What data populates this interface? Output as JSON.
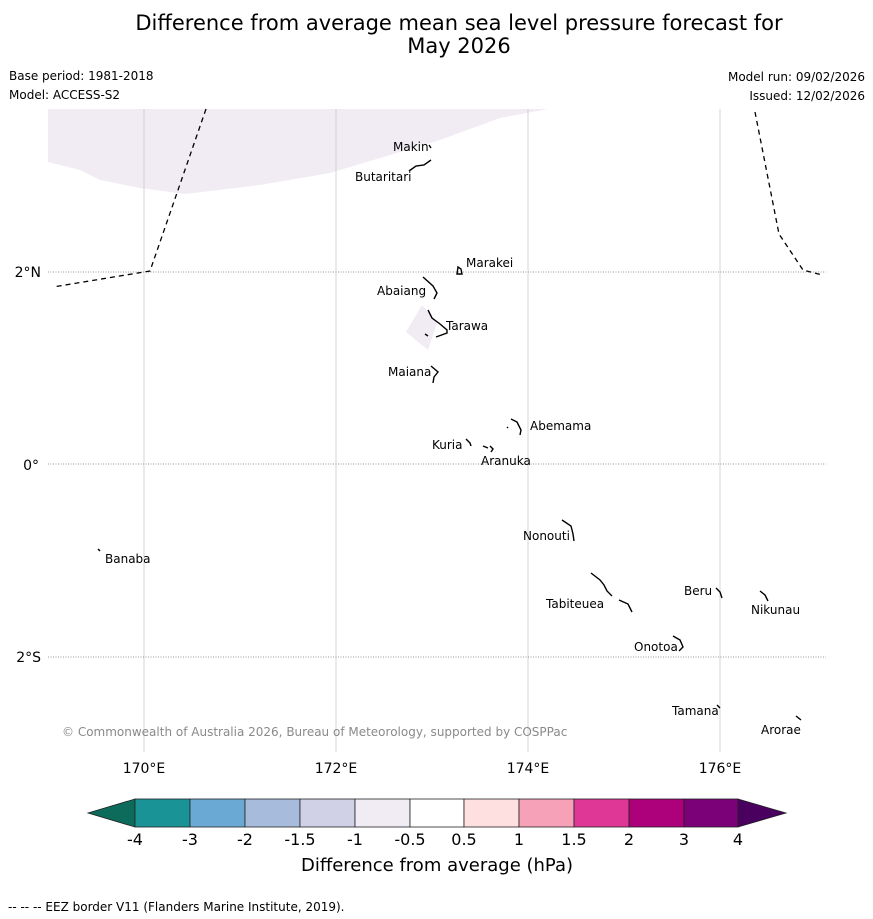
{
  "header": {
    "title_line1": "Difference from average mean sea level pressure forecast for",
    "title_line2": "May 2026",
    "base_period": "Base period: 1981-2018",
    "model": "Model: ACCESS-S2",
    "model_run": "Model run: 09/02/2026",
    "issued": "Issued: 12/02/2026"
  },
  "map": {
    "lon_ticks": [
      "170°E",
      "172°E",
      "174°E",
      "176°E"
    ],
    "lat_ticks": [
      "2°N",
      "0°",
      "2°S"
    ],
    "islands": [
      "Makin",
      "Butaritari",
      "Marakei",
      "Abaiang",
      "Tarawa",
      "Maiana",
      "Abemama",
      "Kuria",
      "Aranuka",
      "Nonouti",
      "Banaba",
      "Beru",
      "Nikunau",
      "Tabiteuea",
      "Onotoa",
      "Tamana",
      "Arorae"
    ],
    "copyright": "© Commonwealth of Australia 2026, Bureau of Meteorology, supported by COSPPac"
  },
  "colorbar": {
    "labels": [
      "-4",
      "-3",
      "-2",
      "-1.5",
      "-1",
      "-0.5",
      "0.5",
      "1",
      "1.5",
      "2",
      "3",
      "4"
    ],
    "colors": [
      "#1a9396",
      "#6aa9d4",
      "#a7bcdc",
      "#d0d0e6",
      "#f1ecf3",
      "#ffffff",
      "#fde0df",
      "#f7a1b9",
      "#df3796",
      "#ad017b",
      "#7a0177"
    ],
    "under_color": "#0c6b5a",
    "over_color": "#49005f",
    "title": "Difference from average (hPa)"
  },
  "footer": {
    "legend": "--  --  -- EEZ border V11 (Flanders Marine Institute, 2019)."
  }
}
